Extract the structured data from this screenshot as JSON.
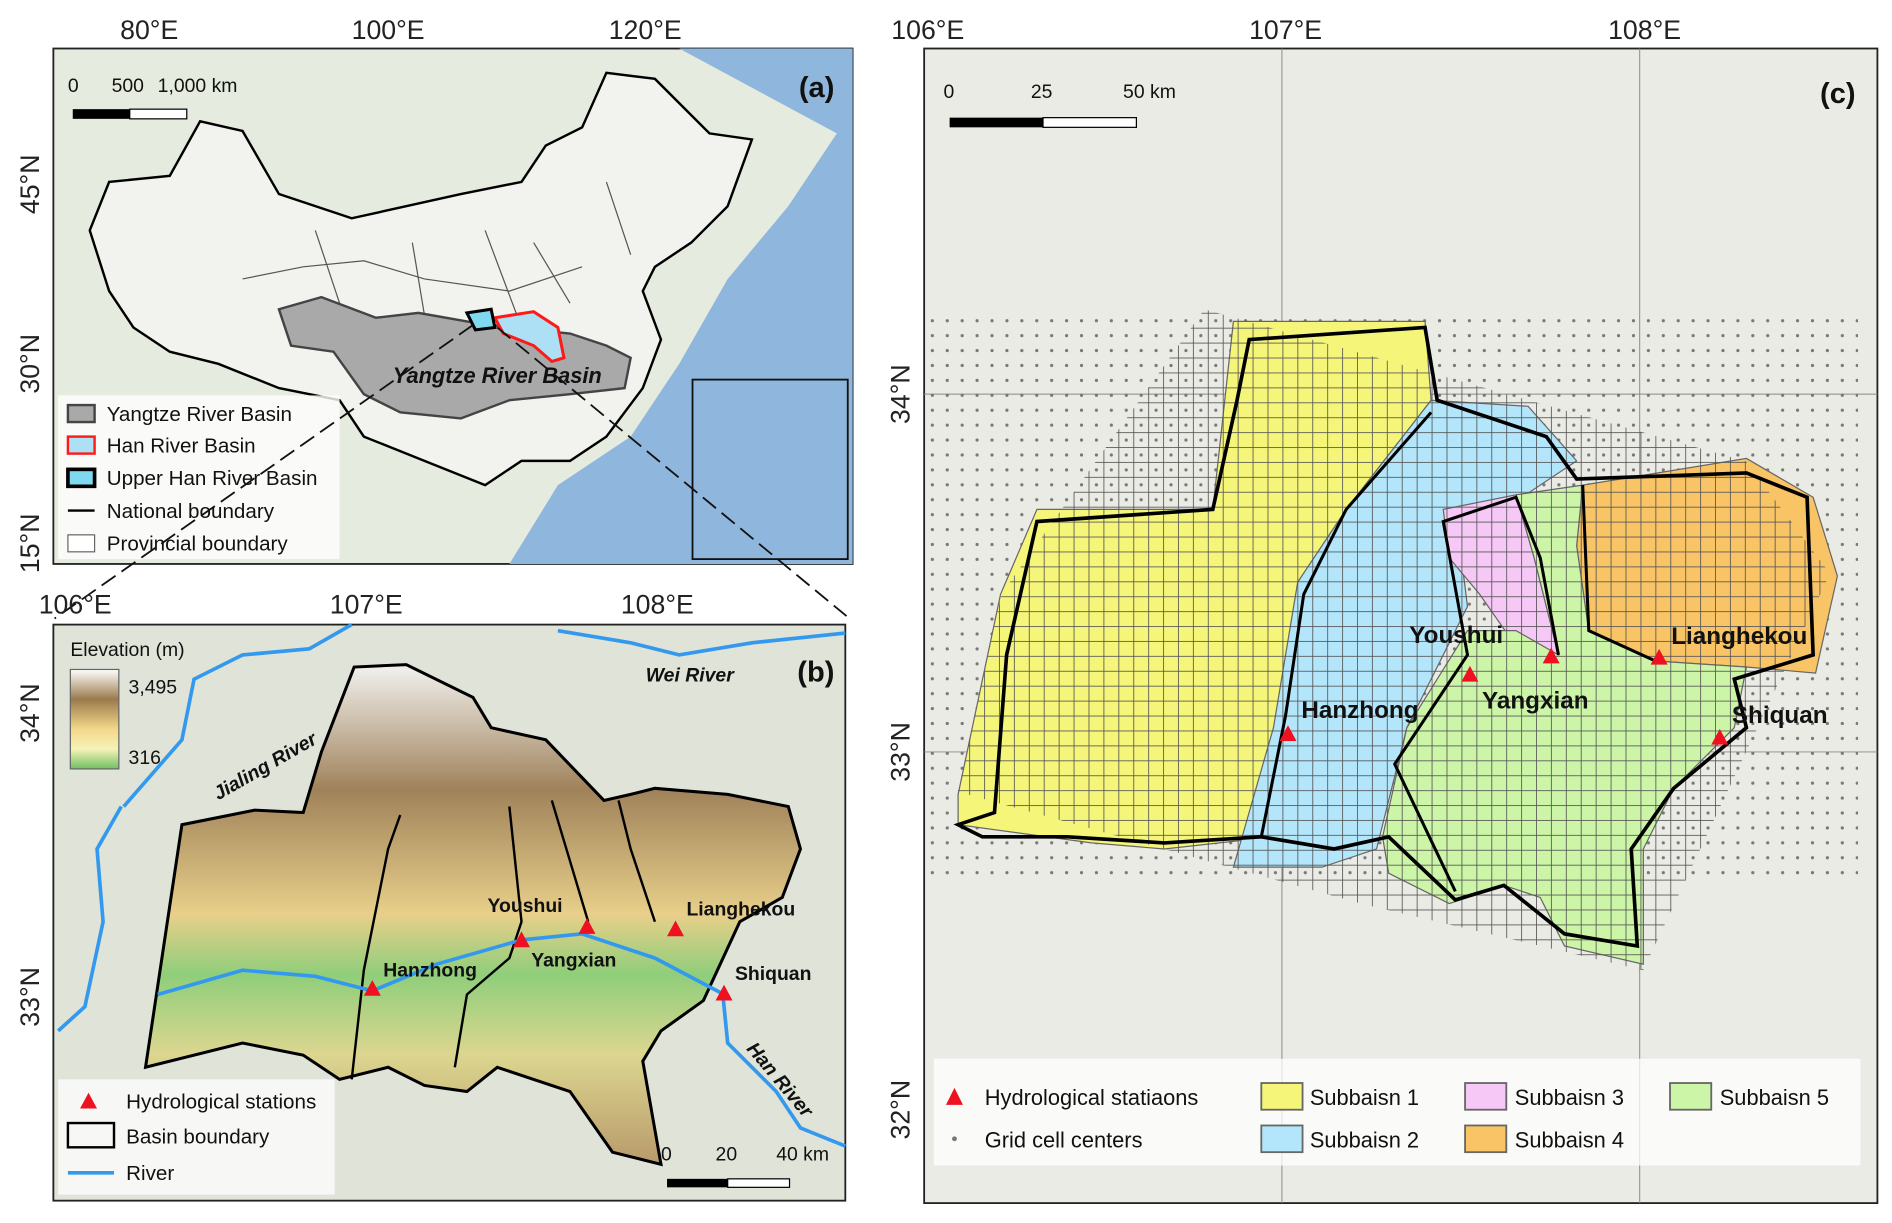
{
  "panel_a": {
    "label": "(a)",
    "lon_ticks": [
      "80°E",
      "100°E",
      "120°E"
    ],
    "lat_ticks": [
      "45°N",
      "30°N",
      "15°N"
    ],
    "scale_bar": {
      "zero": "0",
      "mid": "500",
      "end": "1,000 km"
    },
    "basin_label": "Yangtze River Basin",
    "legend": [
      {
        "label": "Yangtze River Basin",
        "color": "#a9a9a9"
      },
      {
        "label": "Han River Basin",
        "color": "#aee0f5",
        "stroke": "#ff1a1a"
      },
      {
        "label": "Upper Han River Basin",
        "color": "#7fd8f0",
        "stroke": "#000000"
      },
      {
        "label": "National boundary"
      },
      {
        "label": "Provincial boundary"
      }
    ]
  },
  "panel_b": {
    "label": "(b)",
    "lon_ticks": [
      "106°E",
      "107°E",
      "108°E"
    ],
    "lat_ticks": [
      "34°N",
      "33°N"
    ],
    "elevation": {
      "title": "Elevation (m)",
      "max": "3,495",
      "min": "316"
    },
    "rivers": [
      "Wei River",
      "Jialing River",
      "Han River"
    ],
    "stations": [
      "Hanzhong",
      "Youshui",
      "Yangxian",
      "Lianghekou",
      "Shiquan"
    ],
    "scale_bar": {
      "zero": "0",
      "mid": "20",
      "end": "40 km"
    },
    "legend": [
      {
        "label": "Hydrological stations"
      },
      {
        "label": "Basin boundary"
      },
      {
        "label": "River"
      }
    ]
  },
  "panel_c": {
    "label": "(c)",
    "lon_ticks": [
      "106°E",
      "107°E",
      "108°E"
    ],
    "lat_ticks": [
      "34°N",
      "33°N",
      "32°N"
    ],
    "scale_bar": {
      "zero": "0",
      "mid": "25",
      "end": "50 km"
    },
    "stations": [
      "Youshui",
      "Hanzhong",
      "Yangxian",
      "Lianghekou",
      "Shiquan"
    ],
    "legend": [
      {
        "label": "Hydrological statiaons"
      },
      {
        "label": "Grid cell centers"
      },
      {
        "label": "Subbaisn 1",
        "color": "#f5f57a"
      },
      {
        "label": "Subbaisn 2",
        "color": "#b3e6fa"
      },
      {
        "label": "Subbaisn 3",
        "color": "#f5c8f5"
      },
      {
        "label": "Subbaisn 4",
        "color": "#f8c465"
      },
      {
        "label": "Subbaisn 5",
        "color": "#ccf5a8"
      }
    ]
  },
  "colors": {
    "station": "#ee1122",
    "river": "#3399ee",
    "ocean": "#8fb6dc",
    "land": "#ededE6"
  }
}
